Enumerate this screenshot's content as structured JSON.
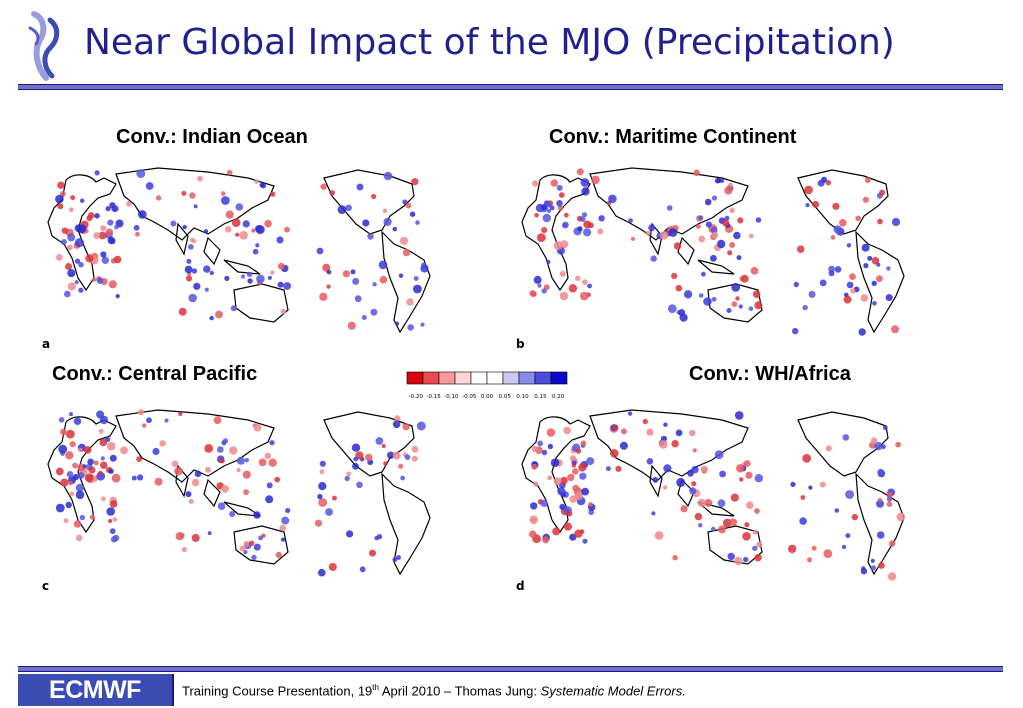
{
  "header": {
    "title": "Near Global Impact of the MJO (Precipitation)",
    "logo": "ecmwf-swirl-logo"
  },
  "panels": [
    {
      "title": "Conv.: Indian Ocean",
      "letter": "a"
    },
    {
      "title": "Conv.: Maritime Continent",
      "letter": "b"
    },
    {
      "title": "Conv.: Central Pacific",
      "letter": "c"
    },
    {
      "title": "Conv.: WH/Africa",
      "letter": "d"
    }
  ],
  "colorbar": {
    "ticks": [
      "-0.20",
      "-0.15",
      "-0.10",
      "-0.05",
      "0.00",
      "0.05",
      "0.10",
      "0.15",
      "0.20"
    ],
    "colors": [
      "#d7000f",
      "#ec4a53",
      "#f79a9c",
      "#fdd5d6",
      "#ffffff",
      "#ffffff",
      "#c9c9f3",
      "#8a8ae9",
      "#4b4bdd",
      "#0a0acb"
    ]
  },
  "footer": {
    "logo_text": "ECMWF",
    "text_before_sup": "Training Course Presentation, 19",
    "superscript": "th",
    "text_after_sup": " April 2010 – Thomas Jung: ",
    "text_italic": "Systematic Model Errors."
  },
  "colors": {
    "title": "#1f1f8f",
    "rule": "#6f6fd0",
    "positive": "#3b3bdb",
    "negative": "#e65a60"
  }
}
